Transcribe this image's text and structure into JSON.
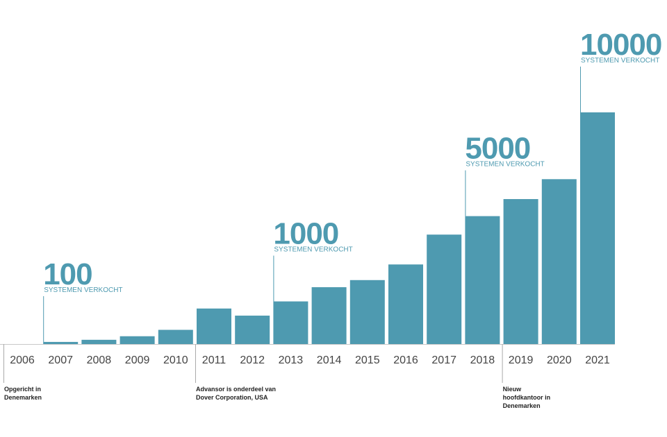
{
  "colors": {
    "bar": "#4e9ab0",
    "accent": "#4e9ab0",
    "axis": "#c8c8c8",
    "leader_line": "#4e9ab0",
    "event_line": "#aaaaaa"
  },
  "chart_data": {
    "type": "bar",
    "title": "",
    "xlabel": "",
    "ylabel": "",
    "categories": [
      "2006",
      "2007",
      "2008",
      "2009",
      "2010",
      "2011",
      "2012",
      "2013",
      "2014",
      "2015",
      "2016",
      "2017",
      "2018",
      "2019",
      "2020",
      "2021"
    ],
    "values": [
      0,
      1.5,
      3,
      5.5,
      10,
      25,
      20,
      30,
      40,
      45,
      56,
      77,
      90,
      102,
      116,
      163
    ],
    "ylim": [
      0,
      163
    ],
    "grid": false,
    "legend": "none",
    "milestones": [
      {
        "year": "2007",
        "number": "100",
        "caption": "SYSTEMEN VERKOCHT"
      },
      {
        "year": "2013",
        "number": "1000",
        "caption": "SYSTEMEN VERKOCHT"
      },
      {
        "year": "2018",
        "number": "5000",
        "caption": "SYSTEMEN VERKOCHT"
      },
      {
        "year": "2021",
        "number": "10000",
        "caption": "SYSTEMEN VERKOCHT"
      }
    ],
    "events": [
      {
        "year": "2006",
        "lines": [
          "Opgericht in",
          "Denemarken"
        ]
      },
      {
        "year": "2011",
        "lines": [
          "Advansor is onderdeel van",
          "Dover Corporation, USA"
        ]
      },
      {
        "year": "2019",
        "lines": [
          "Nieuw",
          "hoofdkantoor in",
          "Denemarken"
        ]
      }
    ]
  }
}
